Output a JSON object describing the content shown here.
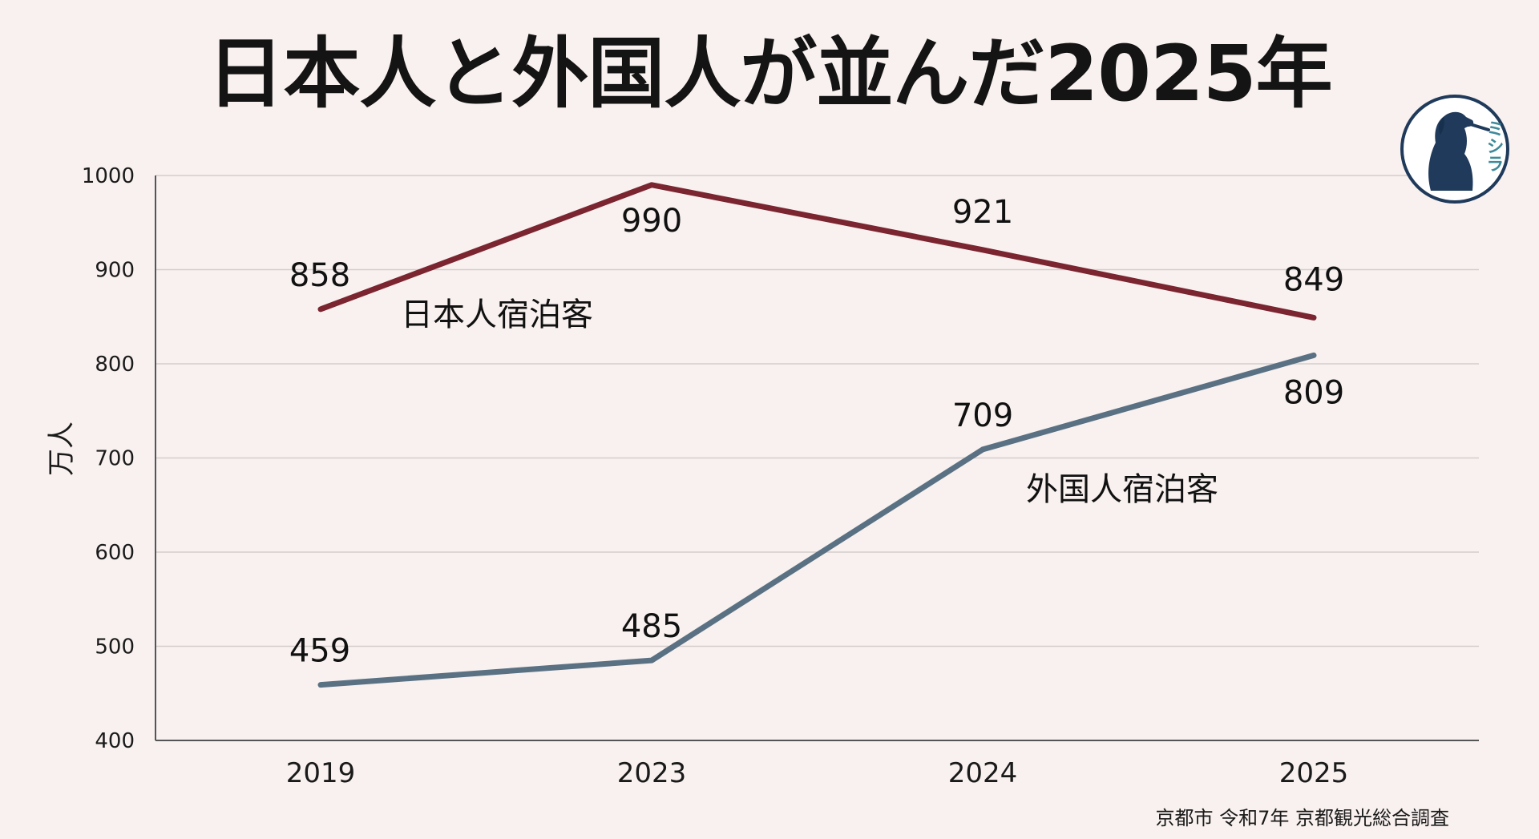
{
  "title": "日本人と外国人が並んだ2025年",
  "source": "京都市 令和7年 京都観光総合調査",
  "logo_text": "ミシラ",
  "colors": {
    "background": "#f8f1ef",
    "japanese": "#7a2530",
    "foreign": "#5a7184",
    "grid": "#d3cdcb",
    "logo": "#1f3a5a",
    "logo_accent": "#3f8a9a"
  },
  "chart_data": {
    "type": "line",
    "categories": [
      "2019",
      "2023",
      "2024",
      "2025"
    ],
    "ylabel": "万人",
    "ylim": [
      400,
      1000
    ],
    "yticks": [
      400,
      500,
      600,
      700,
      800,
      900,
      1000
    ],
    "grid": true,
    "series": [
      {
        "name": "日本人宿泊客",
        "values": [
          858,
          990,
          921,
          849
        ],
        "color": "#7a2530"
      },
      {
        "name": "外国人宿泊客",
        "values": [
          459,
          485,
          709,
          809
        ],
        "color": "#5a7184"
      }
    ]
  }
}
